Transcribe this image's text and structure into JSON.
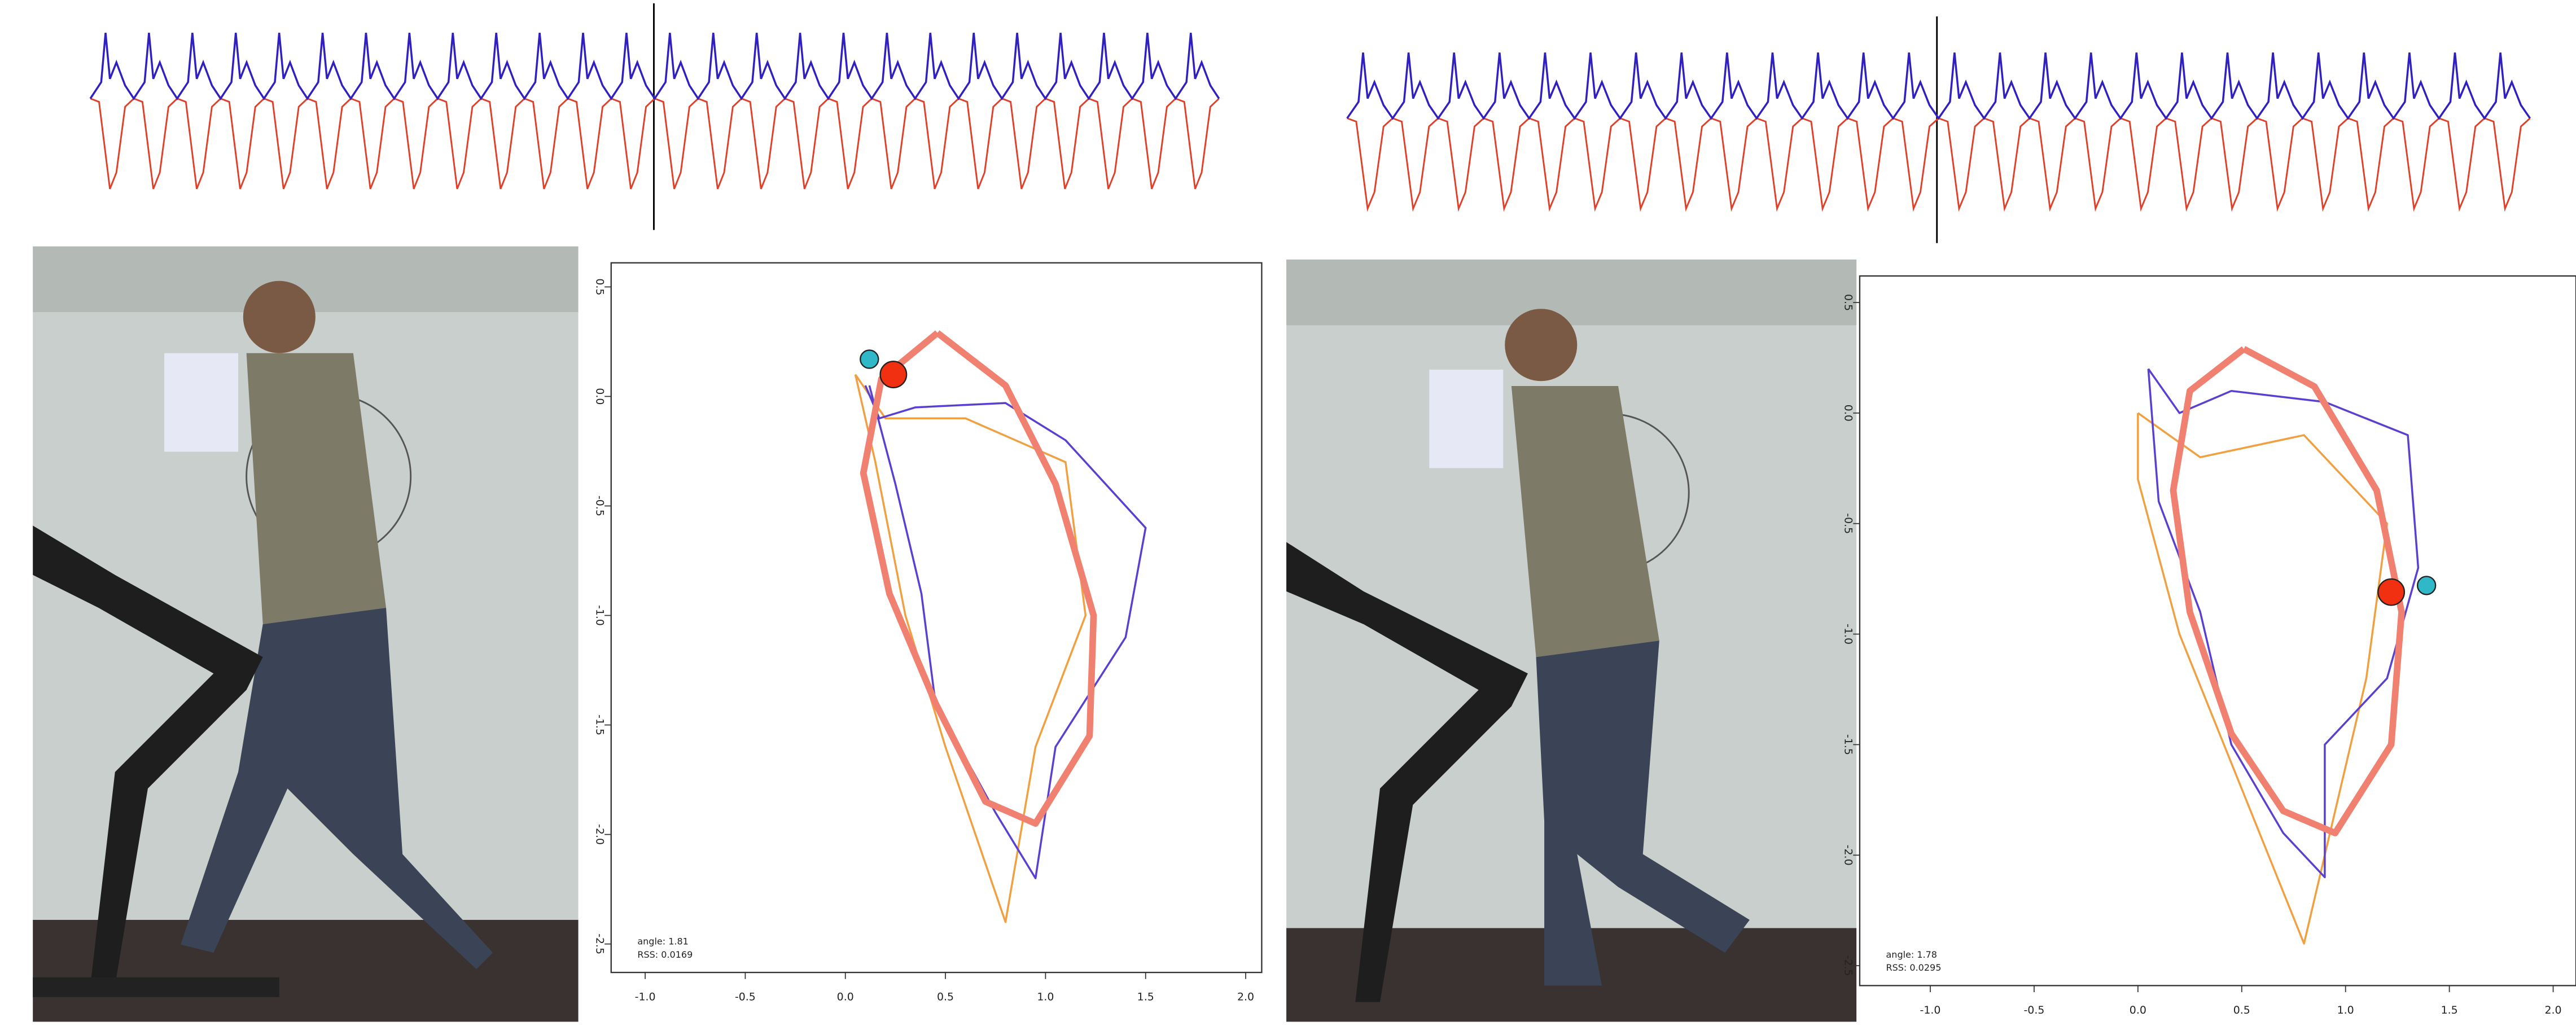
{
  "chart_data": [
    {
      "type": "line",
      "xlim": [
        -1.17,
        2.08
      ],
      "ylim": [
        -2.63,
        0.61
      ],
      "xticks": [
        {
          "value": -1,
          "label": "-1.0"
        },
        -0.5,
        {
          "value": 0,
          "label": "0.0"
        },
        0.5,
        {
          "value": 1,
          "label": "1.0"
        },
        1.5,
        {
          "value": 2,
          "label": "2.0"
        }
      ],
      "yticks": [
        0.5,
        {
          "value": 0,
          "label": "0.0"
        },
        -0.5,
        {
          "value": -1,
          "label": "-1.0"
        },
        -1.5,
        {
          "value": -2,
          "label": "-2.0"
        },
        -2.5
      ],
      "annotations": [
        "angle: 1.81",
        "RSS: 0.0169"
      ],
      "series": [
        {
          "color": "#f0a040",
          "style": "line",
          "x": [
            0.05,
            0.2,
            0.6,
            1.1,
            1.2,
            0.95,
            0.8,
            0.5,
            0.3,
            0.15,
            0.05
          ],
          "values": [
            0.1,
            -0.1,
            -0.1,
            -0.3,
            -1.0,
            -1.6,
            -2.4,
            -1.6,
            -1.0,
            -0.3,
            0.1
          ]
        },
        {
          "color": "#5a3fd0",
          "style": "line",
          "x": [
            0.1,
            0.17,
            0.35,
            0.8,
            1.1,
            1.5,
            1.4,
            1.05,
            0.95,
            0.75,
            0.45,
            0.38,
            0.25,
            0.12
          ],
          "values": [
            0.05,
            -0.1,
            -0.05,
            -0.03,
            -0.2,
            -0.6,
            -1.1,
            -1.6,
            -2.2,
            -1.9,
            -1.4,
            -0.9,
            -0.4,
            0.05
          ]
        },
        {
          "color": "#f08070",
          "style": "line",
          "x": [
            0.46,
            0.8,
            1.05,
            1.24,
            1.22,
            0.95,
            0.7,
            0.45,
            0.22,
            0.09,
            0.18,
            0.46
          ],
          "values": [
            0.29,
            0.05,
            -0.4,
            -1.0,
            -1.55,
            -1.95,
            -1.85,
            -1.4,
            -0.9,
            -0.35,
            0.08,
            0.29
          ]
        },
        {
          "color": "#30b8c8",
          "style": "point",
          "x": [
            0.12
          ],
          "values": [
            0.17
          ]
        },
        {
          "color": "#f03010",
          "style": "point",
          "x": [
            0.24
          ],
          "values": [
            0.1
          ]
        }
      ]
    },
    {
      "type": "line",
      "xlim": [
        -1.34,
        2.11
      ],
      "ylim": [
        -2.59,
        0.62
      ],
      "xticks": [
        {
          "value": -1,
          "label": "-1.0"
        },
        -0.5,
        {
          "value": 0,
          "label": "0.0"
        },
        0.5,
        {
          "value": 1,
          "label": "1.0"
        },
        1.5,
        {
          "value": 2,
          "label": "2.0"
        }
      ],
      "yticks": [
        0.5,
        {
          "value": 0,
          "label": "0.0"
        },
        -0.5,
        {
          "value": -1,
          "label": "-1.0"
        },
        -1.5,
        {
          "value": -2,
          "label": "-2.0"
        },
        -2.5
      ],
      "annotations": [
        "angle: 1.78",
        "RSS: 0.0295"
      ],
      "series": [
        {
          "color": "#f0a040",
          "style": "line",
          "x": [
            0.0,
            0.3,
            0.8,
            1.2,
            1.1,
            0.8,
            0.5,
            0.2,
            0.0,
            0.0
          ],
          "values": [
            0.0,
            -0.2,
            -0.1,
            -0.5,
            -1.2,
            -2.4,
            -1.7,
            -1.0,
            -0.3,
            0.0
          ]
        },
        {
          "color": "#5a3fd0",
          "style": "line",
          "x": [
            0.05,
            0.2,
            0.45,
            0.9,
            1.3,
            1.35,
            1.2,
            0.9,
            0.9,
            0.7,
            0.45,
            0.3,
            0.1,
            0.05
          ],
          "values": [
            0.2,
            0.0,
            0.1,
            0.05,
            -0.1,
            -0.7,
            -1.2,
            -1.5,
            -2.1,
            -1.9,
            -1.5,
            -0.9,
            -0.4,
            0.2
          ]
        },
        {
          "color": "#f08070",
          "style": "line",
          "x": [
            0.51,
            0.85,
            1.15,
            1.27,
            1.22,
            0.95,
            0.7,
            0.45,
            0.25,
            0.17,
            0.25,
            0.51
          ],
          "values": [
            0.29,
            0.12,
            -0.35,
            -0.9,
            -1.5,
            -1.9,
            -1.8,
            -1.45,
            -0.9,
            -0.35,
            0.1,
            0.29
          ]
        },
        {
          "color": "#30b8c8",
          "style": "point",
          "x": [
            1.39
          ],
          "values": [
            -0.78
          ]
        },
        {
          "color": "#f03010",
          "style": "point",
          "x": [
            1.22
          ],
          "values": [
            -0.81
          ]
        }
      ]
    }
  ]
}
